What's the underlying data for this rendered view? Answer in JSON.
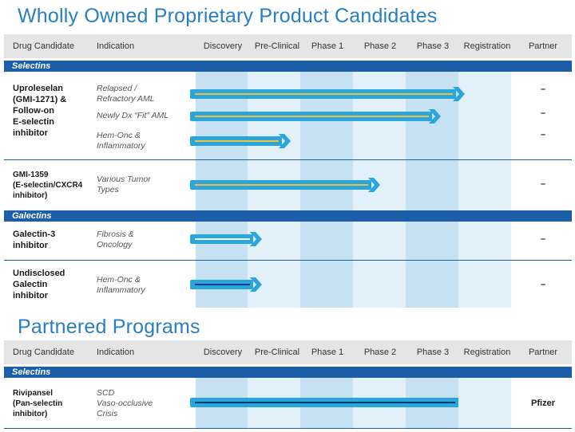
{
  "section1": {
    "title": "Wholly Owned Proprietary Product Candidates",
    "headers": {
      "drug": "Drug Candidate",
      "indication": "Indication",
      "discovery": "Discovery",
      "preclinical": "Pre-Clinical",
      "phase1": "Phase 1",
      "phase2": "Phase 2",
      "phase3": "Phase 3",
      "registration": "Registration",
      "partner": "Partner"
    },
    "groups": {
      "selectins": "Selectins",
      "galectins": "Galectins"
    },
    "rows": [
      {
        "drug": "Uproleselan\n(GMI-1271) &\nFollow-on\nE-selectin\ninhibitor",
        "indications": [
          "Relapsed /\nRefractory AML",
          "Newly Dx “Fit” AML",
          "Hem-Onc &\nInflammatory"
        ],
        "partner": [
          "–",
          "–",
          "–"
        ]
      },
      {
        "drug": "GMI-1359\n(E-selectin/CXCR4\ninhibitor)",
        "indications": [
          "Various Tumor\nTypes"
        ],
        "partner": [
          "–"
        ]
      },
      {
        "drug": "Galectin-3\ninhibitor",
        "indications": [
          "Fibrosis &\nOncology"
        ],
        "partner": [
          "–"
        ]
      },
      {
        "drug": "Undisclosed\nGalectin\ninhibitor",
        "indications": [
          "Hem-Onc &\nInflammatory"
        ],
        "partner": [
          "–"
        ]
      }
    ]
  },
  "section2": {
    "title": "Partnered Programs",
    "headers": {
      "drug": "Drug Candidate",
      "indication": "Indication",
      "discovery": "Discovery",
      "preclinical": "Pre-Clinical",
      "phase1": "Phase 1",
      "phase2": "Phase 2",
      "phase3": "Phase 3",
      "registration": "Registration",
      "partner": "Partner"
    },
    "groups": {
      "selectins": "Selectins"
    },
    "rows": [
      {
        "drug": "Rivipansel\n(Pan-selectin\ninhibitor)",
        "indications": [
          "SCD\nVaso-occlusive\nCrisis"
        ],
        "partner": [
          "Pfizer"
        ]
      }
    ]
  },
  "pipeline": {
    "stages": [
      "Discovery",
      "Pre-Clinical",
      "Phase 1",
      "Phase 2",
      "Phase 3",
      "Registration"
    ],
    "colors": {
      "band": "#1d5ea8",
      "arrow": "#2aa6dc",
      "title": "#2a7fc0"
    },
    "programs": [
      {
        "name": "Relapsed / Refractory AML",
        "reached": "Phase 3",
        "progress": 0.95,
        "line": "#f0c040"
      },
      {
        "name": "Newly Dx Fit AML",
        "reached": "Phase 3",
        "progress": 0.5,
        "line": "#f0c040"
      },
      {
        "name": "Hem-Onc & Inflammatory (Uproleselan)",
        "reached": "Pre-Clinical",
        "progress": 0.65,
        "line": "#f0c040"
      },
      {
        "name": "GMI-1359 Various Tumor Types",
        "reached": "Phase 2",
        "progress": 0.35,
        "line": "#f0c040"
      },
      {
        "name": "Galectin-3 Fibrosis & Oncology",
        "reached": "Pre-Clinical",
        "progress": 0.1,
        "line": "#ffffff"
      },
      {
        "name": "Undisclosed Galectin Hem-Onc & Inflammatory",
        "reached": "Pre-Clinical",
        "progress": 0.1,
        "line": "#1d3f8a"
      },
      {
        "name": "Rivipansel SCD",
        "reached": "Phase 3",
        "progress": 1.0,
        "line": "#0f3c6e",
        "flat": true
      }
    ]
  }
}
